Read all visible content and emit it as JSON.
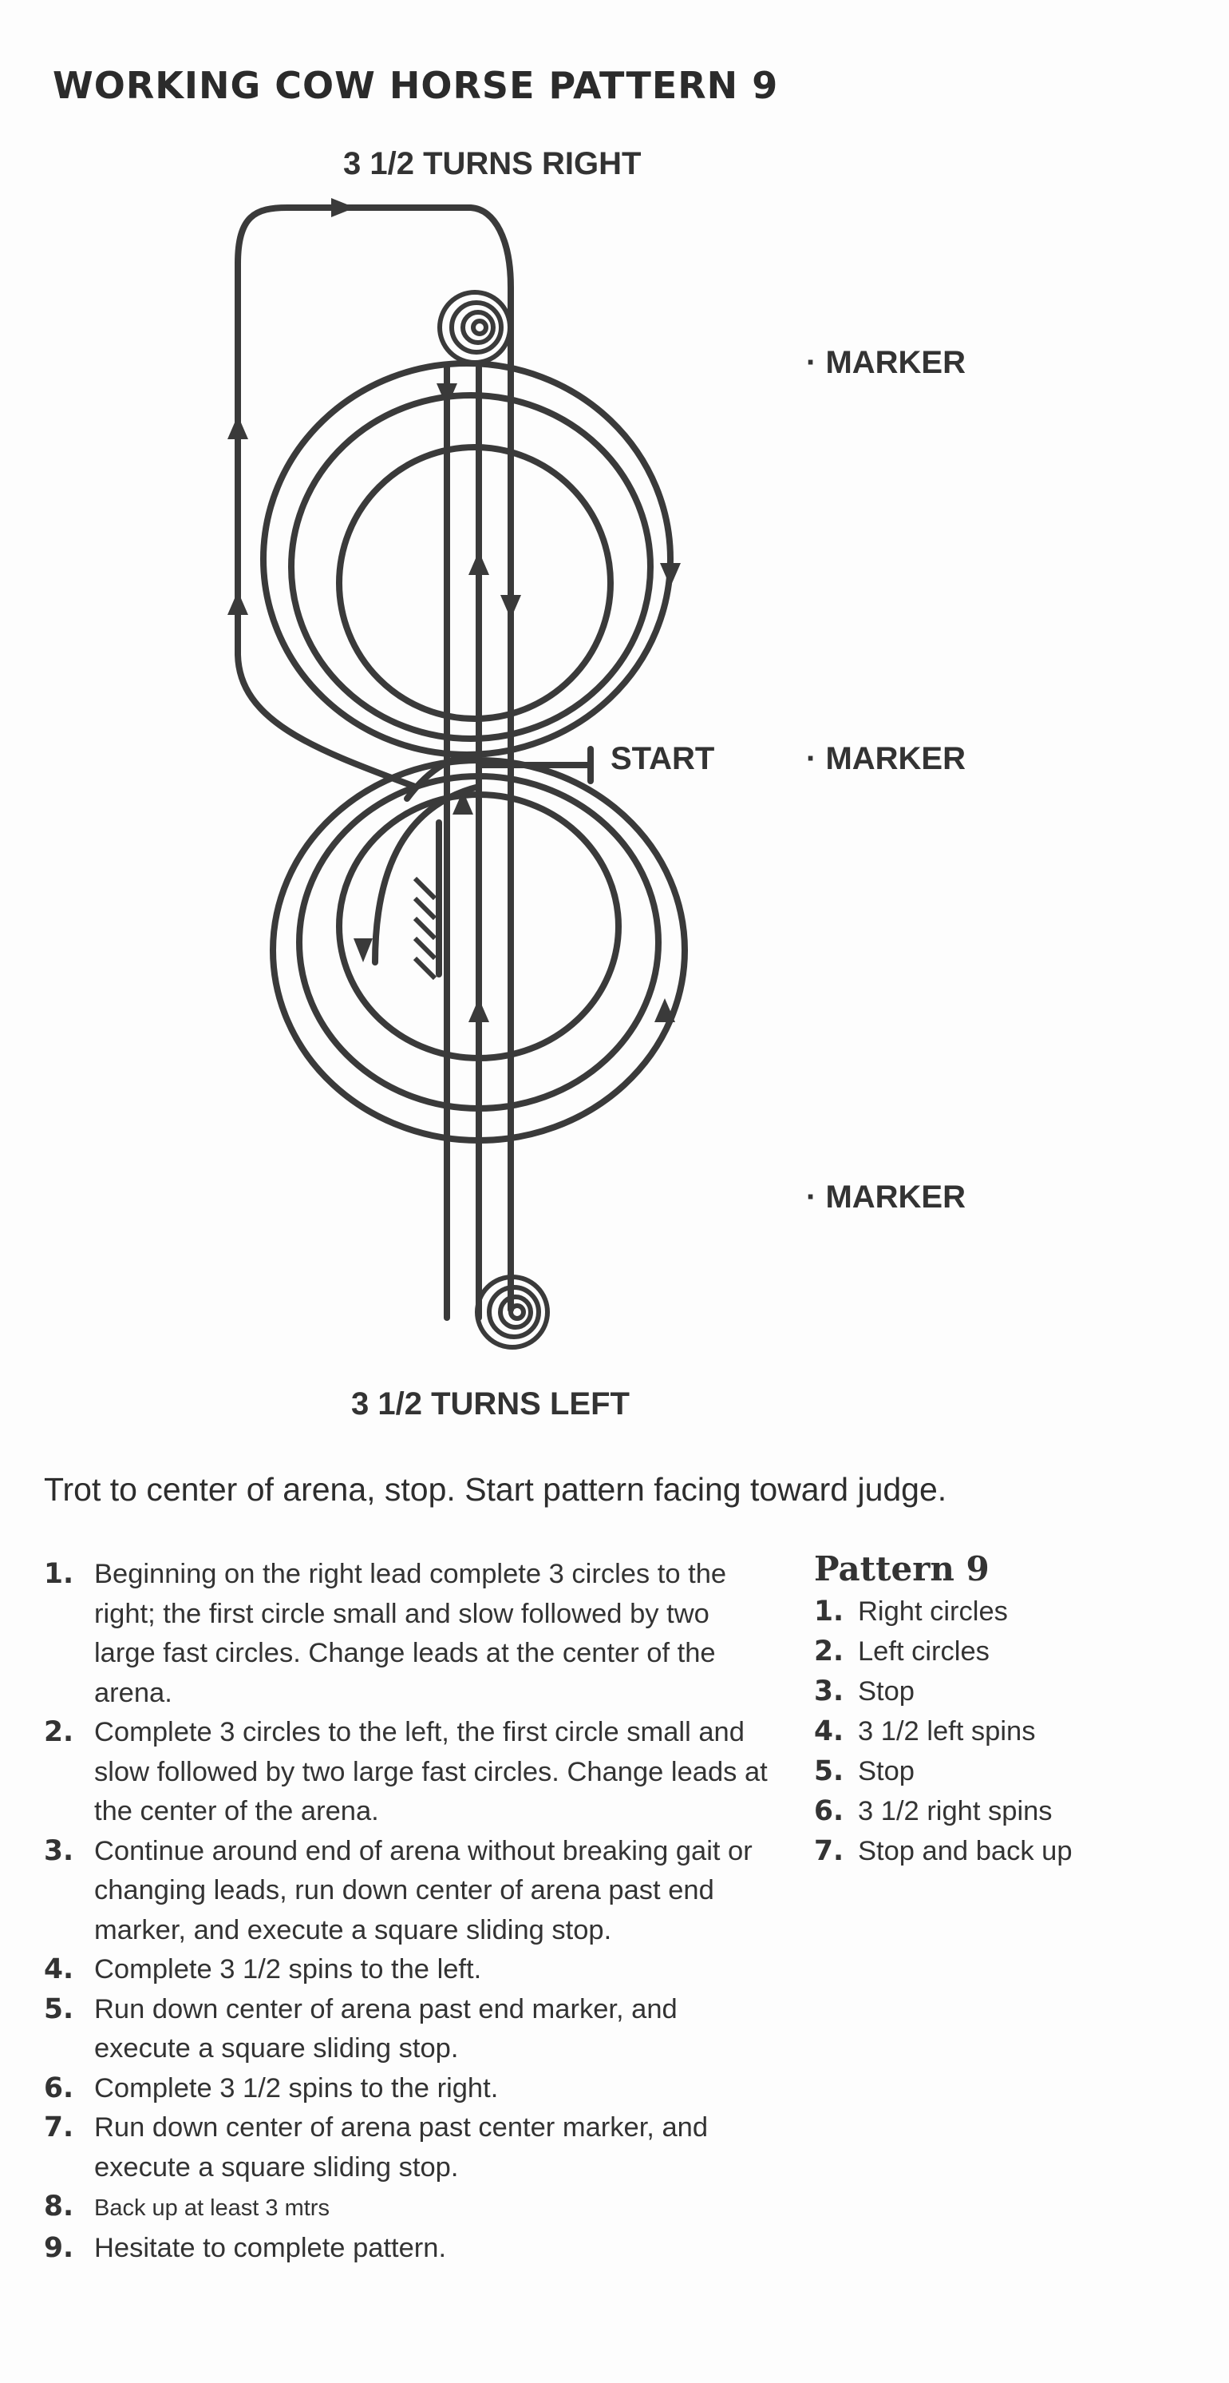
{
  "title": "WORKING COW HORSE PATTERN 9",
  "diagram": {
    "top_label": "3 1/2 TURNS RIGHT",
    "bottom_label": "3 1/2 TURNS LEFT",
    "start_label": "START",
    "markers": [
      "MARKER",
      "MARKER",
      "MARKER"
    ],
    "line_color": "#3a3a3a"
  },
  "intro": "Trot to center of arena, stop. Start pattern facing toward judge.",
  "steps": [
    {
      "num": "1.",
      "text": "Beginning on the right lead complete 3 circles to the right; the first circle small and slow followed by two large fast circles. Change leads at the center of the arena."
    },
    {
      "num": "2.",
      "text": "Complete 3 circles to the left, the first circle small and slow followed by two large fast circles. Change leads at the center of the arena."
    },
    {
      "num": "3.",
      "text": "Continue around end of arena without breaking gait or changing leads, run down center of arena past end marker, and execute a square sliding stop."
    },
    {
      "num": "4.",
      "text": "Complete 3 1/2 spins to the left."
    },
    {
      "num": "5.",
      "text": "Run down center of arena past end marker, and execute a square sliding stop."
    },
    {
      "num": "6.",
      "text": "Complete 3 1/2 spins to the right."
    },
    {
      "num": "7.",
      "text": "Run down center of arena past center marker, and execute a square sliding stop."
    },
    {
      "num": "8.",
      "text": "Back up at least 3 mtrs"
    },
    {
      "num": "9.",
      "text": "Hesitate to complete pattern."
    }
  ],
  "summary": {
    "title": "Pattern 9",
    "items": [
      {
        "num": "1.",
        "text": "Right circles"
      },
      {
        "num": "2.",
        "text": "Left circles"
      },
      {
        "num": "3.",
        "text": "Stop"
      },
      {
        "num": "4.",
        "text": "3 1/2 left spins"
      },
      {
        "num": "5.",
        "text": "Stop"
      },
      {
        "num": "6.",
        "text": "3 1/2 right spins"
      },
      {
        "num": "7.",
        "text": "Stop and back up"
      }
    ]
  }
}
